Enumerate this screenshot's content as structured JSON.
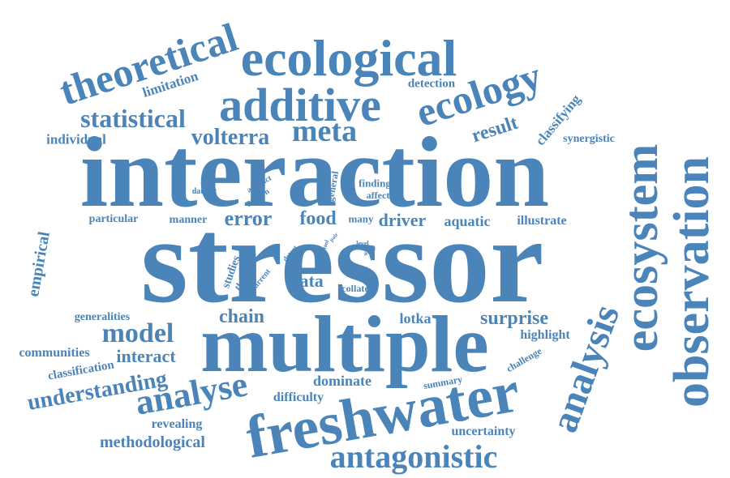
{
  "color": "#4a84b8",
  "words": {
    "interaction": "interaction",
    "stressor": "stressor",
    "multiple": "multiple",
    "freshwater": "freshwater",
    "ecological": "ecological",
    "additive": "additive",
    "theoretical": "theoretical",
    "ecology": "ecology",
    "ecosystem": "ecosystem",
    "observation": "observation",
    "meta": "meta",
    "statistical": "statistical",
    "volterra": "volterra",
    "individual": "individual",
    "limitation": "limitation",
    "detection": "detection",
    "result": "result",
    "classifying": "classifying",
    "synergistic": "synergistic",
    "analysis": "analysis",
    "antagonistic": "antagonistic",
    "analyse": "analyse",
    "model": "model",
    "understanding": "understanding",
    "communities": "communities",
    "interact": "interact",
    "classification": "classification",
    "methodological": "methodological",
    "revealing": "revealing",
    "difficulty": "difficulty",
    "dominate": "dominate",
    "summary": "summary",
    "challenge": "challenge",
    "highlight": "highlight",
    "surprise": "surprise",
    "lotka": "lotka",
    "chain": "chain",
    "data": "data",
    "collate": "collate",
    "error": "error",
    "food": "food",
    "many": "many",
    "driver": "driver",
    "aquatic": "aquatic",
    "illustrate": "illustrate",
    "manner": "manner",
    "particular": "particular",
    "dataset": "dataset",
    "artefact": "artefact",
    "pattern": "pattern",
    "general": "general",
    "finding": "finding",
    "affect": "affect",
    "empirical": "empirical",
    "generalities": "generalities",
    "studies": "studies",
    "theory": "theory",
    "current": "current",
    "detect": "detect",
    "tool": "tool",
    "pair": "pair",
    "level": "level",
    "arise": "arise",
    "uncertainty": "uncertainty"
  }
}
